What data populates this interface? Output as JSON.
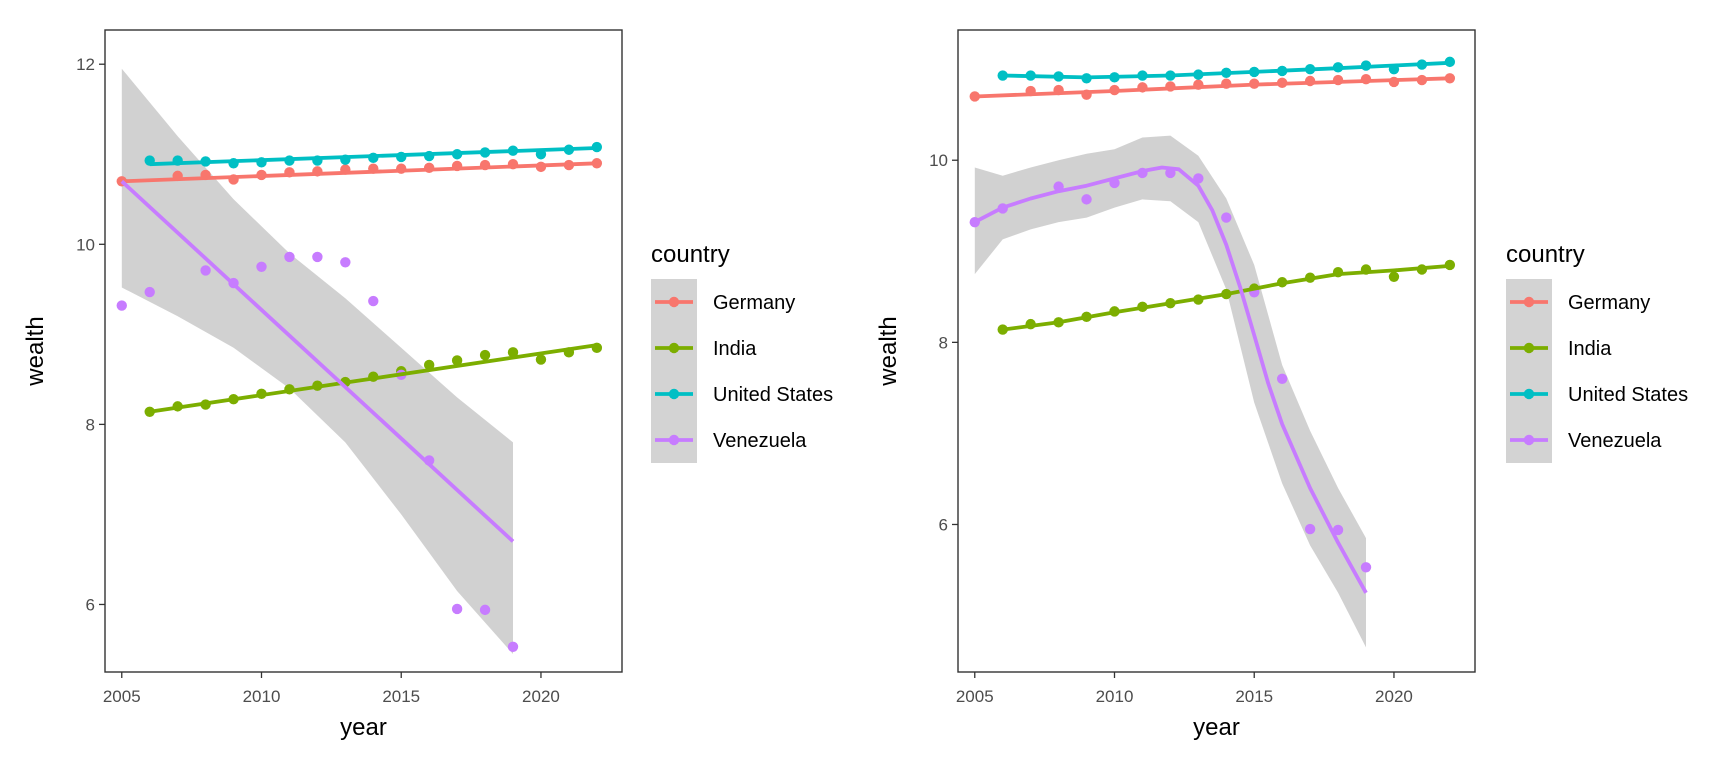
{
  "chart_data": [
    {
      "type": "scatter",
      "smoother": "lm",
      "xlabel": "year",
      "ylabel": "wealth",
      "xlim": [
        2004.4,
        2022.9
      ],
      "ylim": [
        5.25,
        12.38
      ],
      "xticks": [
        2005,
        2010,
        2015,
        2020
      ],
      "yticks": [
        6,
        8,
        10,
        12
      ],
      "grid": false,
      "legend": {
        "title": "country",
        "position": "right",
        "entries": [
          "Germany",
          "India",
          "United States",
          "Venezuela"
        ]
      },
      "series": [
        {
          "name": "Germany",
          "color": "#F8766D",
          "points": [
            [
              2005,
              10.7
            ],
            [
              2007,
              10.76
            ],
            [
              2008,
              10.77
            ],
            [
              2009,
              10.72
            ],
            [
              2010,
              10.77
            ],
            [
              2011,
              10.8
            ],
            [
              2012,
              10.81
            ],
            [
              2013,
              10.83
            ],
            [
              2014,
              10.84
            ],
            [
              2015,
              10.84
            ],
            [
              2016,
              10.85
            ],
            [
              2017,
              10.87
            ],
            [
              2018,
              10.88
            ],
            [
              2019,
              10.89
            ],
            [
              2020,
              10.86
            ],
            [
              2021,
              10.88
            ],
            [
              2022,
              10.9
            ]
          ],
          "fit": [
            [
              2005,
              10.7
            ],
            [
              2022,
              10.9
            ]
          ]
        },
        {
          "name": "India",
          "color": "#7CAE00",
          "points": [
            [
              2006,
              8.14
            ],
            [
              2007,
              8.2
            ],
            [
              2008,
              8.22
            ],
            [
              2009,
              8.28
            ],
            [
              2010,
              8.34
            ],
            [
              2011,
              8.39
            ],
            [
              2012,
              8.43
            ],
            [
              2013,
              8.47
            ],
            [
              2014,
              8.53
            ],
            [
              2015,
              8.59
            ],
            [
              2016,
              8.66
            ],
            [
              2017,
              8.71
            ],
            [
              2018,
              8.77
            ],
            [
              2019,
              8.8
            ],
            [
              2020,
              8.72
            ],
            [
              2021,
              8.8
            ],
            [
              2022,
              8.85
            ]
          ],
          "fit": [
            [
              2006,
              8.14
            ],
            [
              2022,
              8.88
            ]
          ]
        },
        {
          "name": "United States",
          "color": "#00BFC4",
          "points": [
            [
              2006,
              10.93
            ],
            [
              2007,
              10.93
            ],
            [
              2008,
              10.92
            ],
            [
              2009,
              10.9
            ],
            [
              2010,
              10.91
            ],
            [
              2011,
              10.93
            ],
            [
              2012,
              10.93
            ],
            [
              2013,
              10.94
            ],
            [
              2014,
              10.96
            ],
            [
              2015,
              10.97
            ],
            [
              2016,
              10.98
            ],
            [
              2017,
              11.0
            ],
            [
              2018,
              11.02
            ],
            [
              2019,
              11.04
            ],
            [
              2020,
              11.0
            ],
            [
              2021,
              11.05
            ],
            [
              2022,
              11.08
            ]
          ],
          "fit": [
            [
              2006,
              10.89
            ],
            [
              2022,
              11.07
            ]
          ]
        },
        {
          "name": "Venezuela",
          "color": "#C77CFF",
          "points": [
            [
              2005,
              9.32
            ],
            [
              2006,
              9.47
            ],
            [
              2008,
              9.71
            ],
            [
              2009,
              9.57
            ],
            [
              2010,
              9.75
            ],
            [
              2011,
              9.86
            ],
            [
              2012,
              9.86
            ],
            [
              2013,
              9.8
            ],
            [
              2014,
              9.37
            ],
            [
              2015,
              8.55
            ],
            [
              2016,
              7.6
            ],
            [
              2017,
              5.95
            ],
            [
              2018,
              5.94
            ],
            [
              2019,
              5.53
            ]
          ],
          "fit": [
            [
              2005,
              10.7
            ],
            [
              2019,
              6.7
            ]
          ],
          "band_upper": [
            [
              2005,
              11.95
            ],
            [
              2007,
              11.2
            ],
            [
              2009,
              10.5
            ],
            [
              2011,
              9.9
            ],
            [
              2013,
              9.4
            ],
            [
              2015,
              8.85
            ],
            [
              2017,
              8.3
            ],
            [
              2019,
              7.8
            ]
          ],
          "band_lower": [
            [
              2005,
              9.52
            ],
            [
              2007,
              9.2
            ],
            [
              2009,
              8.85
            ],
            [
              2011,
              8.4
            ],
            [
              2013,
              7.8
            ],
            [
              2015,
              7.0
            ],
            [
              2017,
              6.15
            ],
            [
              2019,
              5.45
            ]
          ]
        }
      ]
    },
    {
      "type": "scatter",
      "smoother": "loess",
      "xlabel": "year",
      "ylabel": "wealth",
      "xlim": [
        2004.4,
        2022.9
      ],
      "ylim": [
        4.38,
        11.43
      ],
      "xticks": [
        2005,
        2010,
        2015,
        2020
      ],
      "yticks": [
        6,
        8,
        10
      ],
      "grid": false,
      "legend": {
        "title": "country",
        "position": "right",
        "entries": [
          "Germany",
          "India",
          "United States",
          "Venezuela"
        ]
      },
      "series": [
        {
          "name": "Germany",
          "color": "#F8766D",
          "points": [
            [
              2005,
              10.7
            ],
            [
              2007,
              10.76
            ],
            [
              2008,
              10.77
            ],
            [
              2009,
              10.72
            ],
            [
              2010,
              10.77
            ],
            [
              2011,
              10.8
            ],
            [
              2012,
              10.81
            ],
            [
              2013,
              10.83
            ],
            [
              2014,
              10.84
            ],
            [
              2015,
              10.84
            ],
            [
              2016,
              10.85
            ],
            [
              2017,
              10.87
            ],
            [
              2018,
              10.88
            ],
            [
              2019,
              10.89
            ],
            [
              2020,
              10.86
            ],
            [
              2021,
              10.88
            ],
            [
              2022,
              10.9
            ]
          ],
          "fit": [
            [
              2005,
              10.7
            ],
            [
              2010,
              10.76
            ],
            [
              2015,
              10.83
            ],
            [
              2020,
              10.88
            ],
            [
              2022,
              10.9
            ]
          ]
        },
        {
          "name": "India",
          "color": "#7CAE00",
          "points": [
            [
              2006,
              8.14
            ],
            [
              2007,
              8.2
            ],
            [
              2008,
              8.22
            ],
            [
              2009,
              8.28
            ],
            [
              2010,
              8.34
            ],
            [
              2011,
              8.39
            ],
            [
              2012,
              8.43
            ],
            [
              2013,
              8.47
            ],
            [
              2014,
              8.53
            ],
            [
              2015,
              8.59
            ],
            [
              2016,
              8.66
            ],
            [
              2017,
              8.71
            ],
            [
              2018,
              8.77
            ],
            [
              2019,
              8.8
            ],
            [
              2020,
              8.72
            ],
            [
              2021,
              8.8
            ],
            [
              2022,
              8.85
            ]
          ],
          "fit": [
            [
              2006,
              8.14
            ],
            [
              2008,
              8.22
            ],
            [
              2010,
              8.33
            ],
            [
              2012,
              8.43
            ],
            [
              2014,
              8.53
            ],
            [
              2016,
              8.65
            ],
            [
              2018,
              8.75
            ],
            [
              2020,
              8.79
            ],
            [
              2022,
              8.84
            ]
          ]
        },
        {
          "name": "United States",
          "color": "#00BFC4",
          "points": [
            [
              2006,
              10.93
            ],
            [
              2007,
              10.93
            ],
            [
              2008,
              10.92
            ],
            [
              2009,
              10.9
            ],
            [
              2010,
              10.91
            ],
            [
              2011,
              10.93
            ],
            [
              2012,
              10.93
            ],
            [
              2013,
              10.94
            ],
            [
              2014,
              10.96
            ],
            [
              2015,
              10.97
            ],
            [
              2016,
              10.98
            ],
            [
              2017,
              11.0
            ],
            [
              2018,
              11.02
            ],
            [
              2019,
              11.04
            ],
            [
              2020,
              11.0
            ],
            [
              2021,
              11.05
            ],
            [
              2022,
              11.08
            ]
          ],
          "fit": [
            [
              2006,
              10.93
            ],
            [
              2009,
              10.91
            ],
            [
              2012,
              10.93
            ],
            [
              2015,
              10.97
            ],
            [
              2018,
              11.01
            ],
            [
              2020,
              11.04
            ],
            [
              2022,
              11.07
            ]
          ]
        },
        {
          "name": "Venezuela",
          "color": "#C77CFF",
          "points": [
            [
              2005,
              9.32
            ],
            [
              2006,
              9.47
            ],
            [
              2008,
              9.71
            ],
            [
              2009,
              9.57
            ],
            [
              2010,
              9.75
            ],
            [
              2011,
              9.86
            ],
            [
              2012,
              9.86
            ],
            [
              2013,
              9.8
            ],
            [
              2014,
              9.37
            ],
            [
              2015,
              8.55
            ],
            [
              2016,
              7.6
            ],
            [
              2017,
              5.95
            ],
            [
              2018,
              5.94
            ],
            [
              2019,
              5.53
            ]
          ],
          "fit": [
            [
              2005,
              9.32
            ],
            [
              2006,
              9.48
            ],
            [
              2007,
              9.58
            ],
            [
              2008,
              9.66
            ],
            [
              2009,
              9.72
            ],
            [
              2010,
              9.8
            ],
            [
              2011,
              9.88
            ],
            [
              2011.7,
              9.92
            ],
            [
              2012.3,
              9.9
            ],
            [
              2013,
              9.72
            ],
            [
              2013.5,
              9.45
            ],
            [
              2014,
              9.07
            ],
            [
              2014.5,
              8.6
            ],
            [
              2015,
              8.08
            ],
            [
              2015.5,
              7.55
            ],
            [
              2016,
              7.1
            ],
            [
              2017,
              6.4
            ],
            [
              2018,
              5.8
            ],
            [
              2019,
              5.25
            ]
          ],
          "band_upper": [
            [
              2005,
              9.92
            ],
            [
              2006,
              9.83
            ],
            [
              2007,
              9.92
            ],
            [
              2008,
              10.0
            ],
            [
              2009,
              10.07
            ],
            [
              2010,
              10.12
            ],
            [
              2011,
              10.25
            ],
            [
              2012,
              10.27
            ],
            [
              2013,
              10.05
            ],
            [
              2014,
              9.58
            ],
            [
              2015,
              8.85
            ],
            [
              2016,
              7.75
            ],
            [
              2017,
              7.03
            ],
            [
              2018,
              6.4
            ],
            [
              2019,
              5.85
            ]
          ],
          "band_lower": [
            [
              2005,
              8.75
            ],
            [
              2006,
              9.13
            ],
            [
              2007,
              9.24
            ],
            [
              2008,
              9.32
            ],
            [
              2009,
              9.37
            ],
            [
              2010,
              9.48
            ],
            [
              2011,
              9.57
            ],
            [
              2012,
              9.55
            ],
            [
              2013,
              9.32
            ],
            [
              2014,
              8.58
            ],
            [
              2015,
              7.34
            ],
            [
              2016,
              6.45
            ],
            [
              2017,
              5.77
            ],
            [
              2018,
              5.25
            ],
            [
              2019,
              4.65
            ]
          ]
        }
      ]
    }
  ]
}
